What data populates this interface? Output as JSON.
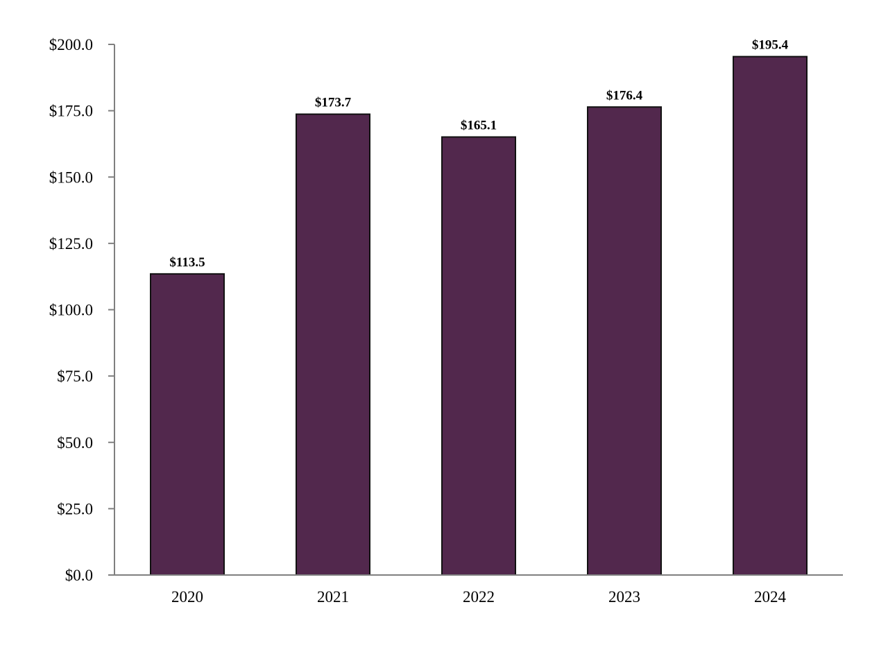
{
  "chart_data": {
    "type": "bar",
    "title": "",
    "xlabel": "",
    "ylabel": "",
    "categories": [
      "2020",
      "2021",
      "2022",
      "2023",
      "2024"
    ],
    "values": [
      113.5,
      173.7,
      165.1,
      176.4,
      195.4
    ],
    "value_labels": [
      "$113.5",
      "$173.7",
      "$165.1",
      "$176.4",
      "$195.4"
    ],
    "ylim": [
      0,
      200
    ],
    "yticks": [
      0,
      25,
      50,
      75,
      100,
      125,
      150,
      175,
      200
    ],
    "ytick_labels": [
      "$0.0",
      "$25.0",
      "$50.0",
      "$75.0",
      "$100.0",
      "$125.0",
      "$150.0",
      "$175.0",
      "$200.0"
    ],
    "grid": false,
    "legend": "none",
    "colors": {
      "bar": "#52284d",
      "bar_edge": "#111111",
      "axis": "#7f7f7f"
    }
  }
}
